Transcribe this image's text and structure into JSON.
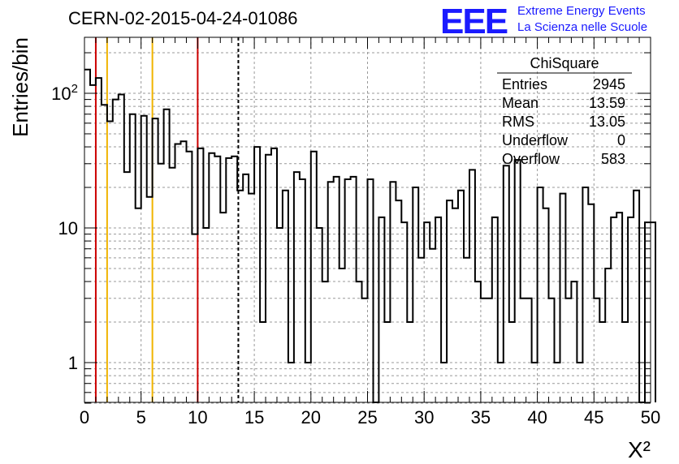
{
  "title": "CERN-02-2015-04-24-01086",
  "logo": {
    "mark": "EEE",
    "line1": "Extreme Energy Events",
    "line2": "La Scienza nelle Scuole"
  },
  "colors": {
    "histogram": "#000000",
    "red_lines": "#cc0000",
    "yellow_lines": "#f0b400",
    "logo": "#1a1aff"
  },
  "stats": {
    "name": "ChiSquare",
    "rows": [
      {
        "label": "Entries",
        "value": "2945"
      },
      {
        "label": "Mean",
        "value": "13.59"
      },
      {
        "label": "RMS",
        "value": "13.05"
      },
      {
        "label": "Underflow",
        "value": "0"
      },
      {
        "label": "Overflow",
        "value": "583"
      }
    ]
  },
  "chart_data": {
    "type": "histogram",
    "xlabel": "X²",
    "ylabel": "Entries/bin",
    "xlim": [
      0,
      50
    ],
    "ylim": [
      0.5,
      270
    ],
    "log_y": true,
    "grid": true,
    "xticks": [
      "0",
      "5",
      "10",
      "15",
      "20",
      "25",
      "30",
      "35",
      "40",
      "45",
      "50"
    ],
    "yticks": [
      {
        "value": 1,
        "label": "1"
      },
      {
        "value": 10,
        "label": "10"
      },
      {
        "value": 100,
        "label": "10²"
      }
    ],
    "bin_width": 0.5,
    "values": [
      150,
      115,
      130,
      82,
      62,
      90,
      98,
      26,
      70,
      14,
      68,
      17,
      65,
      30,
      76,
      28,
      42,
      44,
      37,
      9,
      39,
      10,
      36,
      34,
      13,
      33,
      34,
      19,
      25,
      18,
      40,
      2,
      35,
      39,
      10,
      19,
      1,
      26,
      23,
      1,
      37,
      10,
      4,
      22,
      24,
      5,
      23,
      24,
      4,
      3,
      23,
      0,
      12,
      2,
      22,
      16,
      11,
      2,
      20,
      6,
      11,
      7,
      12,
      1,
      16,
      14,
      19,
      6,
      27,
      4,
      3,
      3,
      12,
      1,
      29,
      2,
      32,
      3,
      3,
      1,
      20,
      14,
      3,
      1,
      18,
      3,
      4,
      1,
      20,
      15,
      3,
      2,
      5,
      12,
      13,
      2,
      12,
      19,
      0,
      11
    ],
    "overflow_bin_value": 11,
    "vertical_lines": [
      {
        "x": 1,
        "color": "red",
        "style": "solid"
      },
      {
        "x": 2,
        "color": "yellow",
        "style": "solid"
      },
      {
        "x": 6,
        "color": "yellow",
        "style": "solid"
      },
      {
        "x": 10,
        "color": "red",
        "style": "solid"
      },
      {
        "x": 13.59,
        "color": "black",
        "style": "dashed"
      }
    ]
  }
}
